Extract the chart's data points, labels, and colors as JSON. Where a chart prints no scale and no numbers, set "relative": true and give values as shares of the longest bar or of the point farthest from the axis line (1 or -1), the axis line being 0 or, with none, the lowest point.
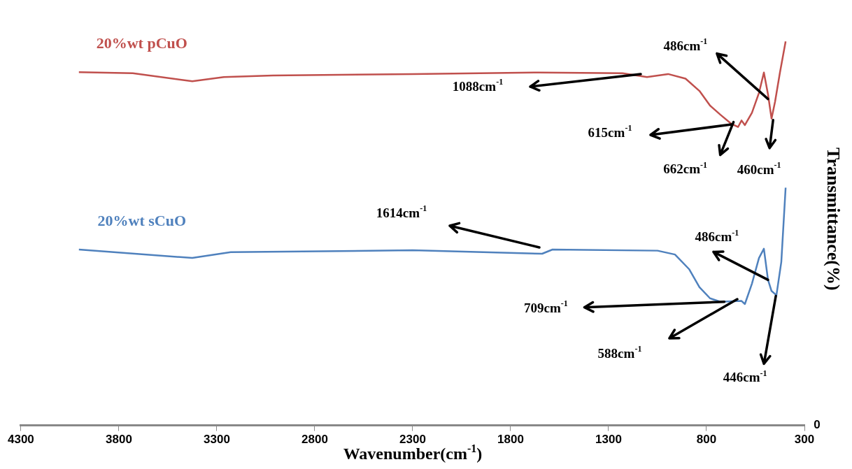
{
  "chart_data": {
    "type": "line",
    "relative": true,
    "xlabel": "Wavenumber(cm$^{-1}$)",
    "ylabel": "Transmittance(%)",
    "xlim": [
      4300,
      300
    ],
    "xticks": [
      4300,
      3800,
      3300,
      2800,
      2300,
      1800,
      1300,
      800,
      300
    ],
    "grid": false,
    "legend": false,
    "marker": "none",
    "line_style": "solid",
    "series": [
      {
        "name": "20%wt pCuO",
        "color": "#c0504d",
        "x": [
          4004,
          3729,
          3425,
          3264,
          3014,
          2300,
          1657,
          1229,
          1104,
          996,
          907,
          836,
          782,
          729,
          675,
          639,
          621,
          604,
          568,
          532,
          507,
          486,
          468,
          450,
          425,
          396
        ],
        "values": [
          0.92,
          0.917,
          0.896,
          0.907,
          0.911,
          0.915,
          0.919,
          0.917,
          0.907,
          0.915,
          0.903,
          0.871,
          0.833,
          0.809,
          0.786,
          0.777,
          0.794,
          0.782,
          0.814,
          0.866,
          0.919,
          0.862,
          0.799,
          0.843,
          0.919,
          1
        ]
      },
      {
        "name": "20%wt sCuO",
        "color": "#4f81bd",
        "x": [
          4004,
          3425,
          3229,
          2300,
          1639,
          1586,
          1050,
          961,
          889,
          836,
          782,
          729,
          621,
          604,
          568,
          532,
          507,
          486,
          468,
          443,
          418,
          396
        ],
        "values": [
          0.458,
          0.436,
          0.451,
          0.456,
          0.447,
          0.458,
          0.455,
          0.445,
          0.407,
          0.36,
          0.331,
          0.322,
          0.324,
          0.316,
          0.369,
          0.436,
          0.46,
          0.379,
          0.35,
          0.339,
          0.426,
          0.619
        ]
      }
    ],
    "annotations": [
      "1088cm$^{-1}$",
      {
        "text": "486cm$^{-1}$",
        "x": 486,
        "y": 0.85
      },
      "615cm$^{-1}$",
      {
        "text": "662cm$^{-1}$",
        "x": 662,
        "y": 0.79
      },
      {
        "text": "460cm$^{-1}$",
        "x": 460,
        "y": 0.795
      },
      "1614cm$^{-1}$",
      {
        "text": "486cm$^{-1}$",
        "x": 486,
        "y": 0.379
      },
      {
        "text": "709cm$^{-1}$",
        "x": 709,
        "y": 0.322
      },
      "588cm$^{-1}$",
      {
        "text": "446cm$^{-1}$",
        "x": 446,
        "y": 0.337
      },
      "0"
    ]
  }
}
